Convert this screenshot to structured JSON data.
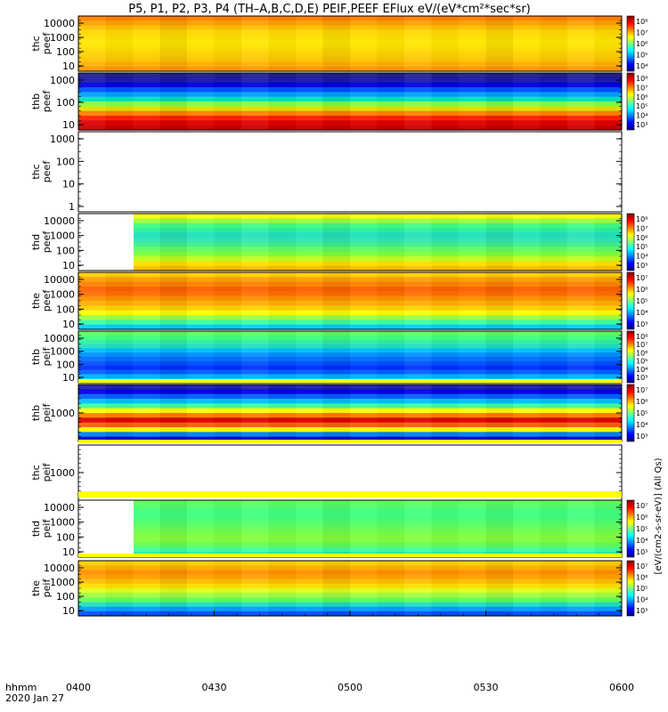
{
  "chart_data": {
    "type": "heatmap",
    "title": "P5, P1, P2, P3, P4 (TH–A,B,C,D,E) PEIF,PEEF EFlux eV/(eV*cm²*sec*sr)",
    "x_ticks": [
      "0400",
      "0430",
      "0500",
      "0530",
      "0600"
    ],
    "x_label_top": "hhmm",
    "x_label_bottom": "2020 Jan 27",
    "colorbar_label": "[eV/(cm2-s-sr-eV)] (All Qs)",
    "panels": [
      {
        "name": "thc peef",
        "label_1": "thc",
        "label_2": "peef",
        "y_ticks": [
          "10000",
          "1000",
          "100",
          "10"
        ],
        "colorbar_ticks": [
          "10⁸",
          "10⁷",
          "10⁶",
          "10⁵",
          "10⁴"
        ],
        "rows": [
          "#ff8000",
          "#ffa000",
          "#ffc000",
          "#ffd800",
          "#ffe000",
          "#ffe800",
          "#ffe400",
          "#ffd800",
          "#ffd000",
          "#ffc400",
          "#ffb000",
          "#ff9800"
        ]
      },
      {
        "name": "thb peef",
        "label_1": "thb",
        "label_2": "peef",
        "y_ticks": [
          "1000",
          "100",
          "10"
        ],
        "colorbar_ticks": [
          "10⁸",
          "10⁷",
          "10⁶",
          "10⁵",
          "10⁴",
          "10³"
        ],
        "rows": [
          "#202090",
          "#1a1ab0",
          "#0000e0",
          "#0050ff",
          "#00a0ff",
          "#00e0c0",
          "#80ff40",
          "#e0e000",
          "#ff8000",
          "#ff2000",
          "#e00000",
          "#c80000"
        ]
      },
      {
        "name": "thc peef",
        "label_1": "thc",
        "label_2": "peef",
        "y_ticks": [
          "1000",
          "100",
          "10",
          "1"
        ],
        "colorbar_ticks": [],
        "rows": []
      },
      {
        "name": "thd peef",
        "label_1": "thd",
        "label_2": "peef",
        "y_ticks": [
          "10000",
          "1000",
          "100",
          "10"
        ],
        "colorbar_ticks": [
          "10⁸",
          "10⁷",
          "10⁶",
          "10⁵",
          "10⁴",
          "10³"
        ],
        "rows": [
          "#ffff00",
          "#a0ff40",
          "#40ff80",
          "#30f0a0",
          "#20e0c0",
          "#30e8b0",
          "#40f090",
          "#60ff60",
          "#80ff40",
          "#c0ff20",
          "#ffe000",
          "#ffc000"
        ]
      },
      {
        "name": "the peef",
        "label_1": "the",
        "label_2": "peef",
        "y_ticks": [
          "10000",
          "1000",
          "100",
          "10"
        ],
        "colorbar_ticks": [
          "10⁷",
          "10⁶",
          "10⁵",
          "10⁴",
          "10³"
        ],
        "rows": [
          "#ffd000",
          "#ffa000",
          "#ff8000",
          "#ff6000",
          "#ff7000",
          "#ff9000",
          "#ffb000",
          "#ffd000",
          "#ffff00",
          "#a0ff40",
          "#40ffa0",
          "#00d0ff"
        ]
      },
      {
        "name": "thb peif",
        "label_1": "thb",
        "label_2": "peif",
        "y_ticks": [
          "10000",
          "1000",
          "100",
          "10"
        ],
        "colorbar_ticks": [
          "10⁸",
          "10⁷",
          "10⁶",
          "10⁵",
          "10⁴",
          "10³"
        ],
        "rows": [
          "#60ff60",
          "#40ff80",
          "#30f0a0",
          "#20e0c0",
          "#00c0ff",
          "#0090ff",
          "#0070ff",
          "#0050ff",
          "#0030ff",
          "#0060ff",
          "#00b0ff",
          "#20e0c0"
        ]
      },
      {
        "name": "thb peif",
        "label_1": "thb",
        "label_2": "peif",
        "y_ticks": [
          "1000"
        ],
        "colorbar_ticks": [
          "10⁷",
          "10⁶",
          "10⁵",
          "10⁴",
          "10³"
        ],
        "rows": [
          "#2020b0",
          "#0000e0",
          "#0060ff",
          "#00c0ff",
          "#40ffa0",
          "#ffff00",
          "#ff8000",
          "#e00000",
          "#ff6000",
          "#ffff00",
          "#0080ff",
          "#0000c0"
        ]
      },
      {
        "name": "thc peif",
        "label_1": "thc",
        "label_2": "peif",
        "y_ticks": [
          "1000"
        ],
        "colorbar_ticks": [],
        "rows": []
      },
      {
        "name": "thd peif",
        "label_1": "thd",
        "label_2": "peif",
        "y_ticks": [
          "10000",
          "1000",
          "100",
          "10"
        ],
        "colorbar_ticks": [
          "10⁷",
          "10⁶",
          "10⁵",
          "10⁴",
          "10³"
        ],
        "rows": [
          "#60ff60",
          "#50ff70",
          "#40ff80",
          "#40ff80",
          "#50ff70",
          "#60ff60",
          "#70ff50",
          "#80ff40",
          "#80ff40",
          "#60ff60",
          "#40ffa0",
          "#20e0c0"
        ]
      },
      {
        "name": "the peif",
        "label_1": "the",
        "label_2": "peif",
        "y_ticks": [
          "10000",
          "1000",
          "100",
          "10"
        ],
        "colorbar_ticks": [
          "10⁷",
          "10⁶",
          "10⁵",
          "10⁴",
          "10³"
        ],
        "rows": [
          "#ffd000",
          "#ffb000",
          "#ff9000",
          "#ffa000",
          "#ffc000",
          "#ffe000",
          "#e0ff20",
          "#a0ff40",
          "#60ff60",
          "#20e0c0",
          "#00a0ff",
          "#0050ff"
        ]
      }
    ]
  }
}
